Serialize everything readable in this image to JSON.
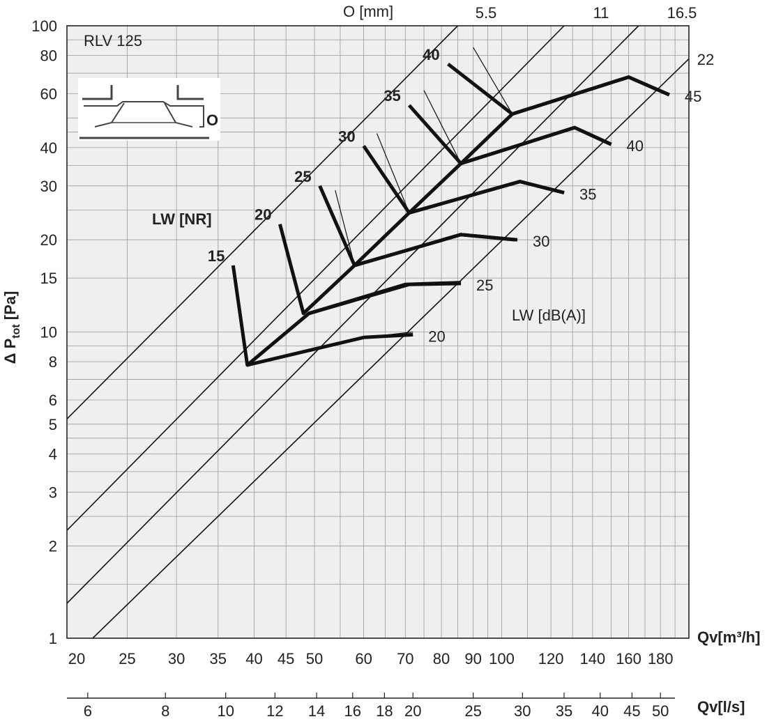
{
  "chart_data": {
    "type": "line",
    "title": "RLV 125",
    "xaxis": {
      "label": "Qv[m³/h]",
      "scale": "log",
      "range": [
        20,
        200
      ],
      "ticks": [
        20,
        25,
        30,
        35,
        40,
        45,
        50,
        60,
        70,
        80,
        90,
        100,
        120,
        140,
        160,
        180
      ]
    },
    "x2axis": {
      "label": "Qv[l/s]",
      "ticks": [
        6,
        8,
        10,
        12,
        14,
        16,
        18,
        20,
        25,
        30,
        35,
        40,
        45,
        50
      ]
    },
    "yaxis": {
      "label": "Δ Ptot [Pa]",
      "scale": "log",
      "range": [
        1,
        100
      ],
      "ticks": [
        1,
        2,
        3,
        4,
        5,
        6,
        8,
        10,
        15,
        20,
        30,
        40,
        60,
        80,
        100
      ]
    },
    "grid": true,
    "opening_label": "O [mm]",
    "opening_lines": [
      {
        "label": "5.5",
        "points": [
          [
            20,
            5.2
          ],
          [
            85,
            100
          ]
        ]
      },
      {
        "label": "11",
        "points": [
          [
            20,
            2.25
          ],
          [
            126,
            100
          ]
        ]
      },
      {
        "label": "16.5",
        "points": [
          [
            20,
            1.3
          ],
          [
            166,
            100
          ]
        ]
      },
      {
        "label": "22",
        "points": [
          [
            22,
            1.0
          ],
          [
            200,
            78
          ]
        ]
      }
    ],
    "nr_label": "LW [NR]",
    "nr_curves": [
      {
        "label": "15",
        "points": [
          [
            37,
            16.5
          ],
          [
            39,
            7.8
          ],
          [
            49,
            11.5
          ],
          [
            70,
            14.3
          ],
          [
            86,
            14.5
          ]
        ]
      },
      {
        "label": "20",
        "points": [
          [
            44,
            22.5
          ],
          [
            48,
            11.5
          ],
          [
            58,
            16.5
          ],
          [
            86,
            20.8
          ],
          [
            105,
            20.0
          ]
        ]
      },
      {
        "label": "25",
        "points": [
          [
            51,
            30
          ],
          [
            58,
            16.5
          ],
          [
            71,
            24.5
          ],
          [
            107,
            31
          ],
          [
            126,
            28.5
          ]
        ]
      },
      {
        "label": "30",
        "points": [
          [
            60,
            40.5
          ],
          [
            71,
            24.5
          ],
          [
            86,
            35.5
          ],
          [
            131,
            46.5
          ],
          [
            150,
            41
          ]
        ]
      },
      {
        "label": "35",
        "points": [
          [
            71,
            55
          ],
          [
            86,
            35.5
          ],
          [
            104,
            51.5
          ],
          [
            160,
            68
          ],
          [
            186,
            59.5
          ]
        ]
      },
      {
        "label": "40",
        "points": [
          [
            82,
            75
          ],
          [
            104,
            51.5
          ]
        ]
      }
    ],
    "dba_label": "LW [dB(A)]",
    "dba_curves": [
      {
        "label": "20",
        "points": [
          [
            39,
            7.8
          ],
          [
            60,
            9.6
          ],
          [
            72,
            9.8
          ]
        ]
      },
      {
        "label": "25",
        "points": [
          [
            49,
            11.5
          ],
          [
            71,
            14.3
          ],
          [
            86,
            14.4
          ]
        ]
      },
      {
        "label": "30",
        "points": [
          [
            58,
            16.5
          ],
          [
            86,
            20.8
          ],
          [
            106,
            20.0
          ]
        ]
      },
      {
        "label": "35",
        "points": [
          [
            71,
            24.5
          ],
          [
            107,
            31
          ],
          [
            126,
            28.5
          ]
        ]
      },
      {
        "label": "40",
        "points": [
          [
            86,
            35.5
          ],
          [
            131,
            46.5
          ],
          [
            150,
            41
          ]
        ]
      },
      {
        "label": "45",
        "points": [
          [
            104,
            51.5
          ],
          [
            160,
            68
          ],
          [
            186,
            59.5
          ]
        ]
      }
    ],
    "thin_connectors": [
      [
        [
          54,
          29
        ],
        [
          58,
          16.5
        ]
      ],
      [
        [
          63,
          44.5
        ],
        [
          71,
          24.5
        ]
      ],
      [
        [
          75,
          61.5
        ],
        [
          86,
          35.5
        ]
      ],
      [
        [
          90,
          85
        ],
        [
          104,
          51.5
        ]
      ],
      [
        [
          60,
          9.6
        ],
        [
          72,
          10.0
        ]
      ],
      [
        [
          71,
          14.3
        ],
        [
          86,
          14.6
        ]
      ]
    ]
  }
}
